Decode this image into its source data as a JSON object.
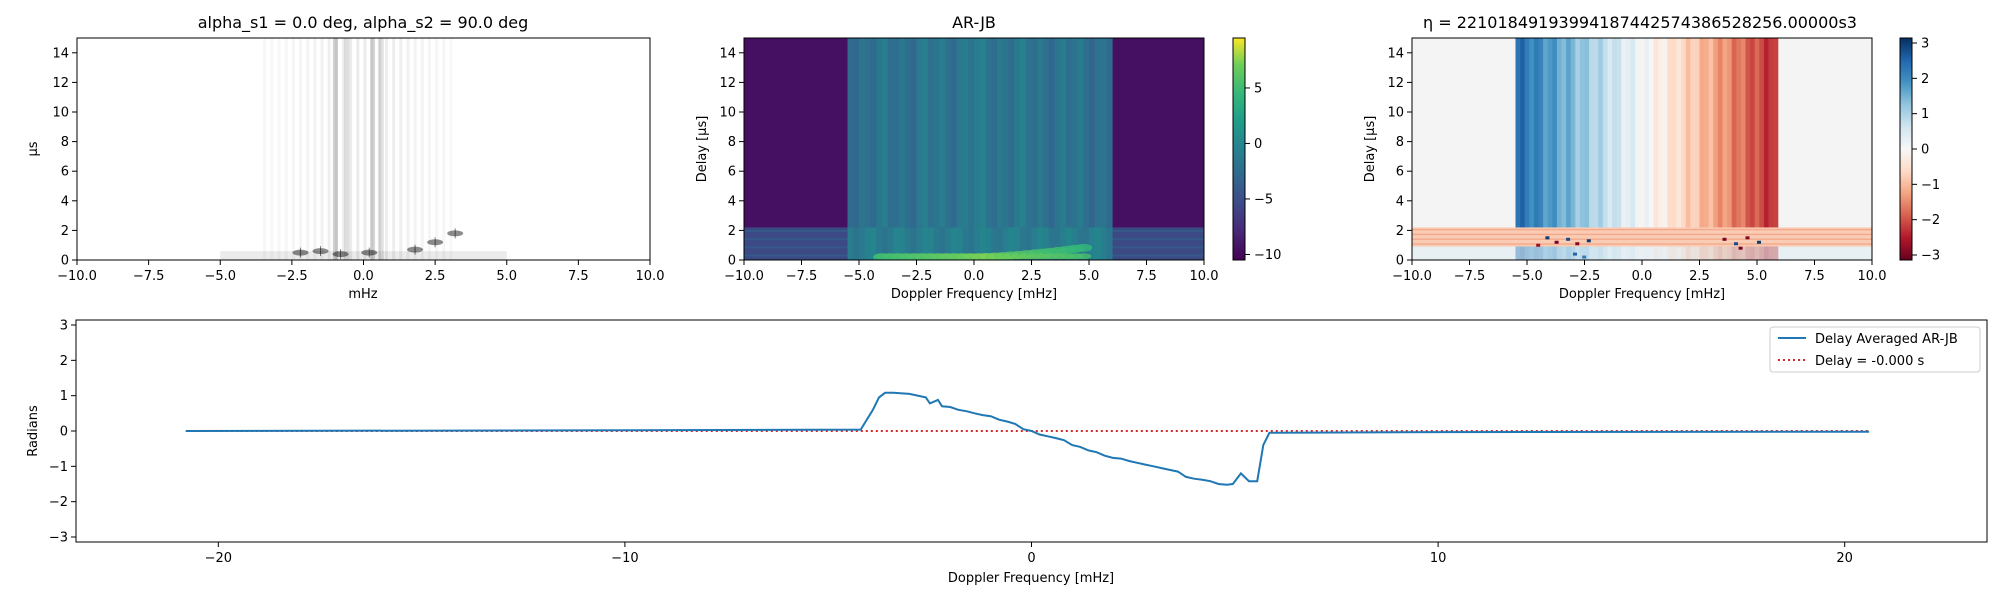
{
  "chart_data": [
    {
      "type": "heatmap",
      "title": "alpha_s1 = 0.0 deg, alpha_s2 = 90.0 deg",
      "xlabel": "mHz",
      "ylabel": "µs",
      "xlim": [
        -10,
        10
      ],
      "ylim": [
        0,
        15
      ],
      "xticks": [
        "−10.0",
        "−7.5",
        "−5.0",
        "−2.5",
        "0.0",
        "2.5",
        "5.0",
        "7.5",
        "10.0"
      ],
      "yticks": [
        "0",
        "2",
        "4",
        "6",
        "8",
        "10",
        "12",
        "14"
      ],
      "colormap": "gray_r",
      "features": [
        {
          "doppler": -1.0,
          "delay_max": 15,
          "strength": 0.35
        },
        {
          "doppler": -0.6,
          "delay_max": 15,
          "strength": 0.25
        },
        {
          "doppler": 0.3,
          "delay_max": 15,
          "strength": 0.3
        },
        {
          "doppler": 0.6,
          "delay_max": 15,
          "strength": 0.25
        }
      ],
      "spots": [
        {
          "doppler": -2.2,
          "delay": 0.5
        },
        {
          "doppler": -1.5,
          "delay": 0.6
        },
        {
          "doppler": -0.8,
          "delay": 0.4
        },
        {
          "doppler": 0.2,
          "delay": 0.5
        },
        {
          "doppler": 1.8,
          "delay": 0.7
        },
        {
          "doppler": 2.5,
          "delay": 1.2
        },
        {
          "doppler": 3.2,
          "delay": 1.8
        }
      ]
    },
    {
      "type": "heatmap",
      "title": "AR-JB",
      "xlabel": "Doppler Frequency [mHz]",
      "ylabel": "Delay [µs]",
      "xlim": [
        -10,
        10
      ],
      "ylim": [
        0,
        15
      ],
      "xticks": [
        "−10.0",
        "−7.5",
        "−5.0",
        "−2.5",
        "0.0",
        "2.5",
        "5.0",
        "7.5",
        "10.0"
      ],
      "yticks": [
        "0",
        "2",
        "4",
        "6",
        "8",
        "10",
        "12",
        "14"
      ],
      "colormap": "viridis",
      "colorbar": {
        "min": -10.5,
        "max": 9.5,
        "ticks": [
          "5",
          "0",
          "−5",
          "−10"
        ],
        "tick_values": [
          5,
          0,
          -5,
          -10
        ]
      },
      "background_value": -9.5,
      "band": {
        "doppler_min": -5.5,
        "doppler_max": 5.8,
        "value": -1.5
      },
      "low_delay_strip": {
        "delay_max": 2.2,
        "value": -4.5
      },
      "bright_arc": {
        "doppler_min": -4.0,
        "doppler_max": 5.0,
        "delay_max": 2.0,
        "value": 6.5
      }
    },
    {
      "type": "heatmap",
      "title": "η = 2210184919399418744257438652825​6.00000s3",
      "title_raw": "η = 22101849193994187442574386528256.00000s3",
      "xlabel": "Doppler Frequency [mHz]",
      "ylabel": "Delay [µs]",
      "xlim": [
        -10,
        10
      ],
      "ylim": [
        0,
        15
      ],
      "xticks": [
        "−10.0",
        "−7.5",
        "−5.0",
        "−2.5",
        "0.0",
        "2.5",
        "5.0",
        "7.5",
        "10.0"
      ],
      "yticks": [
        "0",
        "2",
        "4",
        "6",
        "8",
        "10",
        "12",
        "14"
      ],
      "colormap": "RdBu",
      "colorbar": {
        "min": -3.14159,
        "max": 3.14159,
        "ticks": [
          "3",
          "2",
          "1",
          "0",
          "−1",
          "−2",
          "−3"
        ],
        "tick_values": [
          3,
          2,
          1,
          0,
          -1,
          -2,
          -3
        ]
      },
      "band": {
        "doppler_min": -5.5,
        "doppler_max": 5.8
      },
      "low_delay_strip": {
        "delay_min": 0.9,
        "delay_max": 2.2,
        "value": -0.8
      }
    },
    {
      "type": "line",
      "xlabel": "Doppler Frequency [mHz]",
      "ylabel": "Radians",
      "xlim": [
        -23.5,
        23.5
      ],
      "ylim": [
        -3.14159,
        3.14159
      ],
      "xticks": [
        {
          "v": -20,
          "t": "−20"
        },
        {
          "v": -10,
          "t": "−10"
        },
        {
          "v": 0,
          "t": "0"
        },
        {
          "v": 10,
          "t": "10"
        },
        {
          "v": 20,
          "t": "20"
        }
      ],
      "yticks": [
        {
          "v": 3,
          "t": "3"
        },
        {
          "v": 2,
          "t": "2"
        },
        {
          "v": 1,
          "t": "1"
        },
        {
          "v": 0,
          "t": "0"
        },
        {
          "v": -1,
          "t": "−1"
        },
        {
          "v": -2,
          "t": "−2"
        },
        {
          "v": -3,
          "t": "−3"
        }
      ],
      "legend_position": "top-right",
      "series": [
        {
          "name": "Delay Averaged  AR-JB",
          "color": "#1f77b4",
          "style": "solid",
          "x": [
            -20.8,
            -10,
            -4.2,
            -3.9,
            -3.75,
            -3.6,
            -3.4,
            -3.0,
            -2.6,
            -2.5,
            -2.3,
            -2.2,
            -2.0,
            -1.8,
            -1.6,
            -1.4,
            -1.2,
            -1.0,
            -0.8,
            -0.6,
            -0.4,
            -0.2,
            0.0,
            0.2,
            0.4,
            0.6,
            0.8,
            1.0,
            1.2,
            1.4,
            1.6,
            1.8,
            2.0,
            2.2,
            2.4,
            2.6,
            2.8,
            3.0,
            3.2,
            3.4,
            3.6,
            3.8,
            4.0,
            4.2,
            4.4,
            4.6,
            4.8,
            4.95,
            5.15,
            5.35,
            5.55,
            5.7,
            5.85,
            6.05,
            10,
            20.6
          ],
          "y": [
            0.0,
            0.02,
            0.04,
            0.6,
            0.95,
            1.08,
            1.08,
            1.05,
            0.95,
            0.78,
            0.88,
            0.7,
            0.68,
            0.6,
            0.56,
            0.5,
            0.45,
            0.42,
            0.32,
            0.27,
            0.2,
            0.05,
            0.0,
            -0.1,
            -0.15,
            -0.2,
            -0.26,
            -0.4,
            -0.45,
            -0.55,
            -0.6,
            -0.7,
            -0.76,
            -0.78,
            -0.85,
            -0.9,
            -0.95,
            -1.0,
            -1.05,
            -1.1,
            -1.15,
            -1.3,
            -1.35,
            -1.38,
            -1.42,
            -1.5,
            -1.52,
            -1.5,
            -1.2,
            -1.42,
            -1.42,
            -0.4,
            -0.05,
            -0.05,
            -0.03,
            -0.02
          ]
        },
        {
          "name": "Delay = -0.000 s",
          "color": "#d62728",
          "style": "dotted",
          "x": [
            -20.8,
            20.6
          ],
          "y": [
            0.0,
            0.0
          ]
        }
      ]
    }
  ]
}
